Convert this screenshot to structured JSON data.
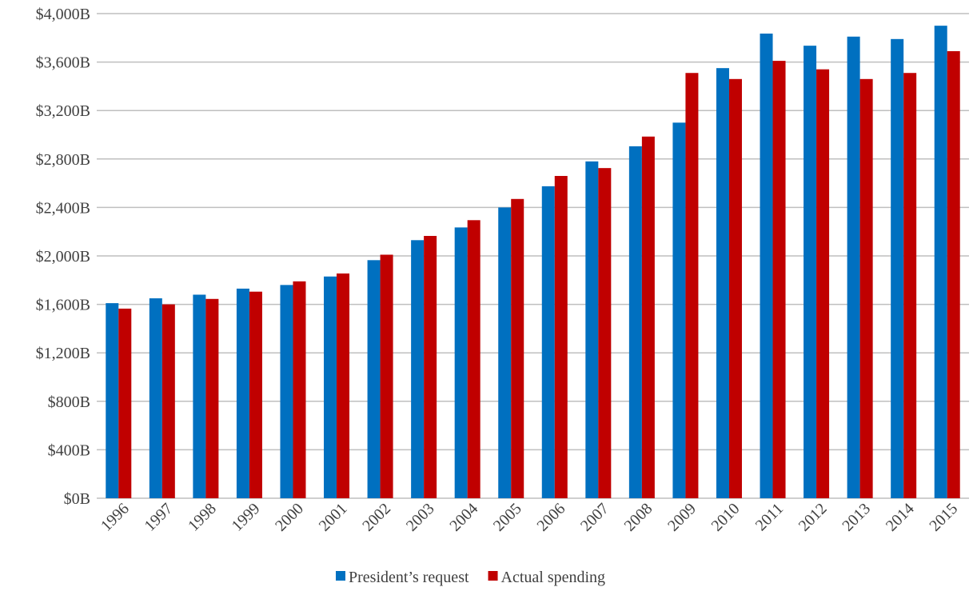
{
  "chart_data": {
    "type": "bar",
    "categories": [
      "1996",
      "1997",
      "1998",
      "1999",
      "2000",
      "2001",
      "2002",
      "2003",
      "2004",
      "2005",
      "2006",
      "2007",
      "2008",
      "2009",
      "2010",
      "2011",
      "2012",
      "2013",
      "2014",
      "2015"
    ],
    "series": [
      {
        "name": "President’s request",
        "color": "#0070c0",
        "values": [
          1610,
          1650,
          1680,
          1730,
          1760,
          1830,
          1965,
          2130,
          2235,
          2400,
          2575,
          2780,
          2905,
          3100,
          3550,
          3835,
          3735,
          3810,
          3790,
          3900
        ]
      },
      {
        "name": "Actual spending",
        "color": "#c00000",
        "values": [
          1565,
          1600,
          1645,
          1705,
          1790,
          1855,
          2010,
          2165,
          2295,
          2470,
          2660,
          2725,
          2985,
          3510,
          3460,
          3610,
          3540,
          3460,
          3510,
          3690
        ]
      }
    ],
    "ylim": [
      0,
      4000
    ],
    "yticks": [
      {
        "value": 0,
        "label": "$0B"
      },
      {
        "value": 400,
        "label": "$400B"
      },
      {
        "value": 800,
        "label": "$800B"
      },
      {
        "value": 1200,
        "label": "$1,200B"
      },
      {
        "value": 1600,
        "label": "$1,600B"
      },
      {
        "value": 2000,
        "label": "$2,000B"
      },
      {
        "value": 2400,
        "label": "$2,400B"
      },
      {
        "value": 2800,
        "label": "$2,800B"
      },
      {
        "value": 3200,
        "label": "$3,200B"
      },
      {
        "value": 3600,
        "label": "$3,600B"
      },
      {
        "value": 4000,
        "label": "$4,000B"
      }
    ],
    "grid": true,
    "legend": "bottom"
  }
}
